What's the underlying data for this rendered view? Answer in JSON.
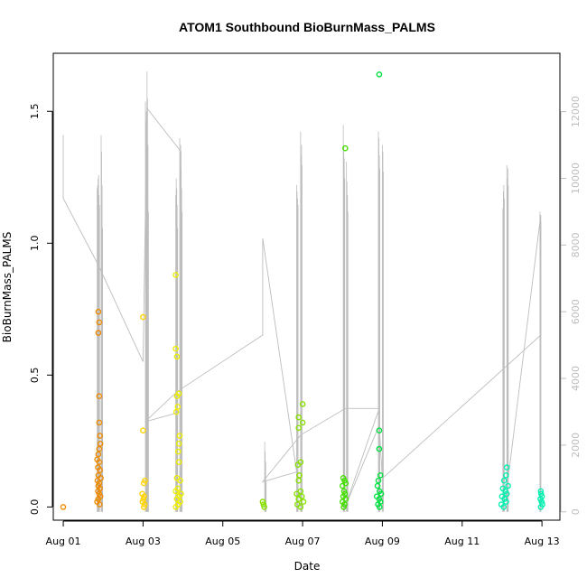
{
  "chart_data": {
    "type": "scatter",
    "title": "ATOM1 Southbound BioBurnMass_PALMS",
    "xlabel": "Date",
    "ylabel": "BioBurnMass_PALMS",
    "x_ticks": [
      "Aug 01",
      "Aug 03",
      "Aug 05",
      "Aug 07",
      "Aug 09",
      "Aug 11",
      "Aug 13"
    ],
    "y_ticks": [
      "0.0",
      "0.5",
      "1.0",
      "1.5"
    ],
    "y_right_ticks": [
      "0",
      "2000",
      "4000",
      "6000",
      "8000",
      "10000",
      "12000"
    ],
    "xlim_days": [
      0.75,
      13.45
    ],
    "ylim": [
      -0.05,
      1.72
    ],
    "y_right_lim": [
      -250,
      13750
    ],
    "colors": {
      "altitude_line": "#bdbdbd",
      "points_gradient": [
        "#ff8c00",
        "#ffd700",
        "#ffff00",
        "#adff2f",
        "#32cd32",
        "#00ff7f",
        "#40e0d0"
      ]
    },
    "series": [
      {
        "color": "#ee8a00",
        "points": [
          [
            1.0,
            0.0
          ],
          [
            1.88,
            0.74
          ],
          [
            1.9,
            0.7
          ],
          [
            1.88,
            0.66
          ],
          [
            1.9,
            0.42
          ],
          [
            1.9,
            0.32
          ],
          [
            1.92,
            0.27
          ],
          [
            1.93,
            0.24
          ],
          [
            1.9,
            0.22
          ],
          [
            1.88,
            0.2
          ],
          [
            1.85,
            0.18
          ],
          [
            1.9,
            0.17
          ],
          [
            1.87,
            0.15
          ],
          [
            1.92,
            0.14
          ],
          [
            1.88,
            0.12
          ],
          [
            1.94,
            0.11
          ],
          [
            1.86,
            0.1
          ],
          [
            1.9,
            0.09
          ],
          [
            1.88,
            0.08
          ],
          [
            1.92,
            0.07
          ],
          [
            1.87,
            0.06
          ],
          [
            1.9,
            0.05
          ],
          [
            1.93,
            0.04
          ],
          [
            1.88,
            0.03
          ],
          [
            1.85,
            0.02
          ],
          [
            1.91,
            0.01
          ]
        ]
      },
      {
        "color": "#ffd200",
        "points": [
          [
            3.0,
            0.72
          ],
          [
            3.0,
            0.29
          ],
          [
            3.05,
            0.1
          ],
          [
            3.02,
            0.09
          ],
          [
            2.98,
            0.05
          ],
          [
            3.03,
            0.04
          ],
          [
            3.01,
            0.03
          ],
          [
            2.99,
            0.02
          ],
          [
            3.04,
            0.01
          ],
          [
            3.02,
            0.0
          ]
        ]
      },
      {
        "color": "#eeee00",
        "points": [
          [
            3.82,
            0.88
          ],
          [
            3.82,
            0.6
          ],
          [
            3.85,
            0.57
          ],
          [
            3.9,
            0.43
          ],
          [
            3.85,
            0.42
          ],
          [
            3.87,
            0.38
          ],
          [
            3.83,
            0.36
          ],
          [
            3.92,
            0.27
          ],
          [
            3.9,
            0.24
          ],
          [
            3.88,
            0.21
          ],
          [
            3.9,
            0.17
          ],
          [
            3.85,
            0.11
          ],
          [
            3.93,
            0.1
          ],
          [
            3.87,
            0.07
          ],
          [
            3.82,
            0.06
          ],
          [
            3.95,
            0.05
          ],
          [
            3.9,
            0.04
          ],
          [
            3.85,
            0.03
          ],
          [
            3.93,
            0.02
          ],
          [
            3.88,
            0.01
          ],
          [
            3.82,
            0.0
          ]
        ]
      },
      {
        "color": "#88e000",
        "points": [
          [
            6.0,
            0.02
          ],
          [
            6.02,
            0.01
          ],
          [
            6.04,
            0.0
          ],
          [
            6.9,
            0.34
          ],
          [
            6.9,
            0.3
          ],
          [
            7.0,
            0.39
          ],
          [
            7.0,
            0.32
          ],
          [
            6.95,
            0.17
          ],
          [
            6.88,
            0.16
          ],
          [
            6.92,
            0.12
          ],
          [
            6.9,
            0.1
          ],
          [
            6.95,
            0.06
          ],
          [
            6.85,
            0.05
          ],
          [
            6.98,
            0.04
          ],
          [
            6.9,
            0.03
          ],
          [
            7.02,
            0.02
          ],
          [
            6.87,
            0.01
          ],
          [
            6.95,
            0.0
          ]
        ]
      },
      {
        "color": "#44e000",
        "points": [
          [
            8.07,
            1.36
          ],
          [
            8.02,
            0.11
          ],
          [
            8.05,
            0.1
          ],
          [
            8.08,
            0.09
          ],
          [
            8.0,
            0.08
          ],
          [
            8.04,
            0.06
          ],
          [
            8.06,
            0.05
          ],
          [
            8.02,
            0.04
          ],
          [
            8.08,
            0.03
          ],
          [
            8.0,
            0.02
          ],
          [
            8.05,
            0.01
          ],
          [
            8.03,
            0.0
          ]
        ]
      },
      {
        "color": "#00e040",
        "points": [
          [
            8.92,
            1.64
          ],
          [
            8.92,
            0.29
          ],
          [
            8.92,
            0.22
          ],
          [
            8.95,
            0.12
          ],
          [
            8.9,
            0.1
          ],
          [
            8.88,
            0.08
          ],
          [
            8.93,
            0.06
          ],
          [
            8.97,
            0.05
          ],
          [
            8.86,
            0.04
          ],
          [
            8.92,
            0.03
          ],
          [
            8.95,
            0.02
          ],
          [
            8.89,
            0.01
          ],
          [
            8.93,
            0.0
          ]
        ]
      },
      {
        "color": "#00f0b0",
        "points": [
          [
            12.12,
            0.15
          ],
          [
            12.1,
            0.12
          ],
          [
            12.05,
            0.1
          ],
          [
            12.15,
            0.08
          ],
          [
            12.02,
            0.07
          ],
          [
            12.08,
            0.06
          ],
          [
            12.12,
            0.05
          ],
          [
            12.0,
            0.04
          ],
          [
            12.06,
            0.03
          ],
          [
            12.1,
            0.02
          ],
          [
            11.98,
            0.01
          ],
          [
            12.04,
            0.0
          ],
          [
            12.97,
            0.06
          ],
          [
            12.98,
            0.05
          ],
          [
            13.0,
            0.04
          ],
          [
            12.96,
            0.03
          ],
          [
            12.99,
            0.02
          ],
          [
            13.01,
            0.01
          ],
          [
            12.97,
            0.0
          ]
        ]
      }
    ],
    "altitude_path": [
      [
        1.0,
        11300
      ],
      [
        1.0,
        9400
      ],
      [
        1.88,
        7400
      ],
      [
        3.0,
        4500
      ],
      [
        3.1,
        12100
      ],
      [
        3.95,
        10800
      ],
      [
        3.95,
        3000
      ],
      [
        3.05,
        2700
      ],
      [
        3.85,
        3600
      ],
      [
        6.0,
        5300
      ],
      [
        6.0,
        8200
      ],
      [
        6.85,
        1200
      ],
      [
        6.0,
        900
      ],
      [
        6.95,
        2300
      ],
      [
        8.07,
        3100
      ],
      [
        8.92,
        3100
      ],
      [
        8.05,
        100
      ],
      [
        8.92,
        2600
      ],
      [
        9.0,
        1000
      ],
      [
        12.97,
        5300
      ],
      [
        12.97,
        8900
      ],
      [
        12.1,
        500
      ]
    ],
    "altitude_spikes": [
      {
        "day": 1.85,
        "heights": [
          9700,
          9800,
          10000,
          10100,
          9500,
          9200
        ]
      },
      {
        "day": 1.95,
        "heights": [
          11300,
          10800,
          9800,
          8500
        ]
      },
      {
        "day": 3.06,
        "heights": [
          12300,
          11700,
          12000,
          10500,
          8200
        ]
      },
      {
        "day": 3.1,
        "heights": [
          13200,
          12400,
          11000,
          9000
        ]
      },
      {
        "day": 3.82,
        "heights": [
          9500,
          10000,
          9700,
          9200,
          8500
        ]
      },
      {
        "day": 3.92,
        "heights": [
          11200,
          10800,
          11000,
          10300,
          9700,
          9000
        ]
      },
      {
        "day": 6.05,
        "heights": [
          2100,
          1800,
          1500,
          900
        ]
      },
      {
        "day": 6.85,
        "heights": [
          9800,
          9600,
          9400,
          9200
        ]
      },
      {
        "day": 6.95,
        "heights": [
          11400,
          10700,
          11000,
          10400
        ]
      },
      {
        "day": 8.02,
        "heights": [
          11600,
          11000,
          10600,
          10000
        ]
      },
      {
        "day": 8.1,
        "heights": [
          10500,
          9900,
          9500,
          9000
        ]
      },
      {
        "day": 8.9,
        "heights": [
          11400,
          11200,
          10700,
          10300
        ]
      },
      {
        "day": 9.0,
        "heights": [
          11000,
          10800,
          10200
        ]
      },
      {
        "day": 12.02,
        "heights": [
          9100,
          9600,
          9800,
          9400
        ]
      },
      {
        "day": 12.12,
        "heights": [
          10400,
          10000,
          10300,
          9800
        ]
      },
      {
        "day": 12.95,
        "heights": [
          9000,
          8900,
          8700
        ]
      }
    ]
  }
}
